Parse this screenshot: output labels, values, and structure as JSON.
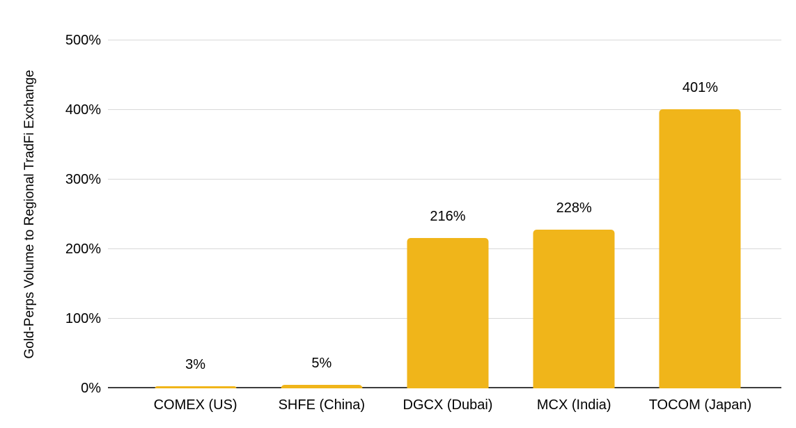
{
  "chart_data": {
    "type": "bar",
    "categories": [
      "COMEX (US)",
      "SHFE (China)",
      "DGCX (Dubai)",
      "MCX (India)",
      "TOCOM (Japan)"
    ],
    "values": [
      3,
      5,
      216,
      228,
      401
    ],
    "value_labels": [
      "3%",
      "5%",
      "216%",
      "228%",
      "401%"
    ],
    "ylabel": "Gold-Perps Volume to Regional TradFi Exchange",
    "xlabel": "",
    "ylim": [
      0,
      500
    ],
    "yticks": [
      0,
      100,
      200,
      300,
      400,
      500
    ],
    "ytick_labels": [
      "0%",
      "100%",
      "200%",
      "300%",
      "400%",
      "500%"
    ],
    "grid": true,
    "legend": "none",
    "colors": {
      "bar": "#F0B51A",
      "gridline": "#D9D9D9",
      "baseline": "#3C3C3C",
      "text": "#000000",
      "background": "#FFFFFF"
    }
  }
}
